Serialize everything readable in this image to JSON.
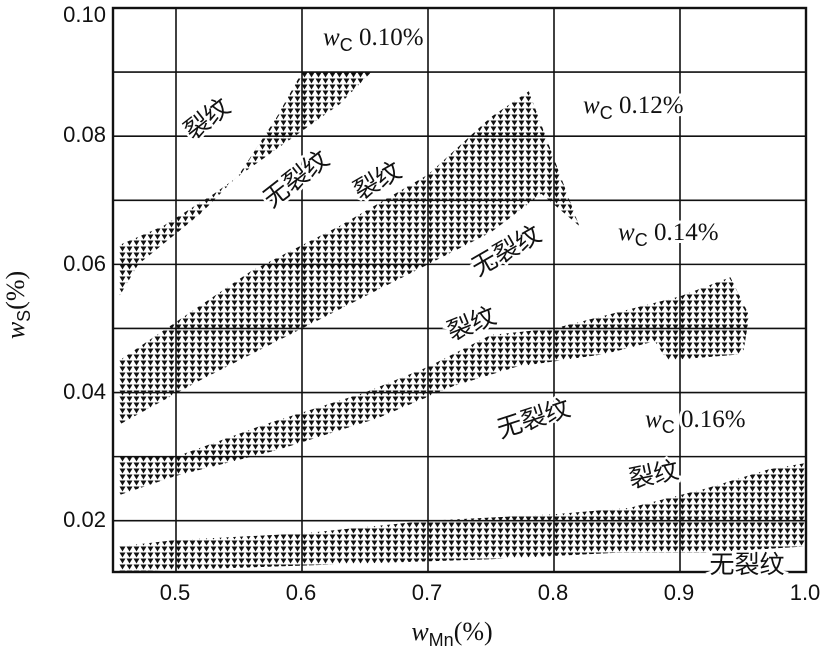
{
  "chart_data": {
    "type": "area",
    "title": "",
    "xlabel": {
      "var": "w",
      "sub": "Mn",
      "unit": "(%)"
    },
    "ylabel": {
      "var": "w",
      "sub": "S",
      "unit": "(%)"
    },
    "xlim": [
      0.45,
      1.0
    ],
    "ylim": [
      0.012,
      0.1
    ],
    "x_ticks": [
      "0.5",
      "0.6",
      "0.7",
      "0.8",
      "0.9",
      "1.0"
    ],
    "y_ticks": [
      "0.02",
      "0.04",
      "0.06",
      "0.08",
      "0.10"
    ],
    "x_tick_values": [
      0.5,
      0.6,
      0.7,
      0.8,
      0.9,
      1.0
    ],
    "y_tick_values": [
      0.02,
      0.04,
      0.06,
      0.08,
      0.1
    ],
    "x_grid": [
      0.45,
      0.5,
      0.6,
      0.7,
      0.8,
      0.9,
      1.0
    ],
    "y_grid": [
      0.02,
      0.03,
      0.04,
      0.05,
      0.06,
      0.07,
      0.08,
      0.09,
      0.1
    ],
    "grid": true,
    "series": [
      {
        "name": "wC 0.10%",
        "wc_var": "w",
        "wc_sub": "C",
        "wc_val": "0.10%",
        "band": [
          [
            0.455,
            0.055
          ],
          [
            0.47,
            0.06
          ],
          [
            0.52,
            0.068
          ],
          [
            0.55,
            0.074
          ],
          [
            0.58,
            0.083
          ],
          [
            0.6,
            0.09
          ],
          [
            0.655,
            0.09
          ],
          [
            0.63,
            0.085
          ],
          [
            0.58,
            0.078
          ],
          [
            0.53,
            0.071
          ],
          [
            0.49,
            0.066
          ],
          [
            0.455,
            0.063
          ]
        ],
        "crack": "裂纹",
        "no_crack": "无裂纹"
      },
      {
        "name": "wC 0.12%",
        "wc_var": "w",
        "wc_sub": "C",
        "wc_val": "0.12%",
        "band": [
          [
            0.455,
            0.035
          ],
          [
            0.52,
            0.042
          ],
          [
            0.6,
            0.05
          ],
          [
            0.68,
            0.058
          ],
          [
            0.75,
            0.065
          ],
          [
            0.79,
            0.071
          ],
          [
            0.82,
            0.066
          ],
          [
            0.78,
            0.087
          ],
          [
            0.75,
            0.083
          ],
          [
            0.7,
            0.074
          ],
          [
            0.63,
            0.066
          ],
          [
            0.56,
            0.059
          ],
          [
            0.5,
            0.051
          ],
          [
            0.455,
            0.045
          ]
        ],
        "crack": "裂纹",
        "no_crack": "无裂纹"
      },
      {
        "name": "wC 0.14%",
        "wc_var": "w",
        "wc_sub": "C",
        "wc_val": "0.14%",
        "band": [
          [
            0.455,
            0.024
          ],
          [
            0.5,
            0.027
          ],
          [
            0.58,
            0.031
          ],
          [
            0.66,
            0.036
          ],
          [
            0.72,
            0.041
          ],
          [
            0.77,
            0.044
          ],
          [
            0.84,
            0.046
          ],
          [
            0.88,
            0.048
          ],
          [
            0.89,
            0.045
          ],
          [
            0.95,
            0.046
          ],
          [
            0.955,
            0.052
          ],
          [
            0.94,
            0.058
          ],
          [
            0.9,
            0.055
          ],
          [
            0.86,
            0.053
          ],
          [
            0.8,
            0.05
          ],
          [
            0.75,
            0.049
          ],
          [
            0.7,
            0.044
          ],
          [
            0.65,
            0.04
          ],
          [
            0.57,
            0.035
          ],
          [
            0.5,
            0.03
          ],
          [
            0.455,
            0.03
          ]
        ],
        "crack": "裂纹",
        "no_crack": "无裂纹"
      },
      {
        "name": "wC 0.16%",
        "wc_var": "w",
        "wc_sub": "C",
        "wc_val": "0.16%",
        "band": [
          [
            0.455,
            0.012
          ],
          [
            0.6,
            0.013
          ],
          [
            0.75,
            0.014
          ],
          [
            0.85,
            0.015
          ],
          [
            0.92,
            0.015
          ],
          [
            1.0,
            0.016
          ],
          [
            1.0,
            0.029
          ],
          [
            0.97,
            0.028
          ],
          [
            0.92,
            0.025
          ],
          [
            0.86,
            0.022
          ],
          [
            0.8,
            0.021
          ],
          [
            0.7,
            0.02
          ],
          [
            0.6,
            0.018
          ],
          [
            0.5,
            0.017
          ],
          [
            0.455,
            0.016
          ]
        ],
        "crack": "裂纹",
        "no_crack": "无裂纹"
      }
    ]
  }
}
